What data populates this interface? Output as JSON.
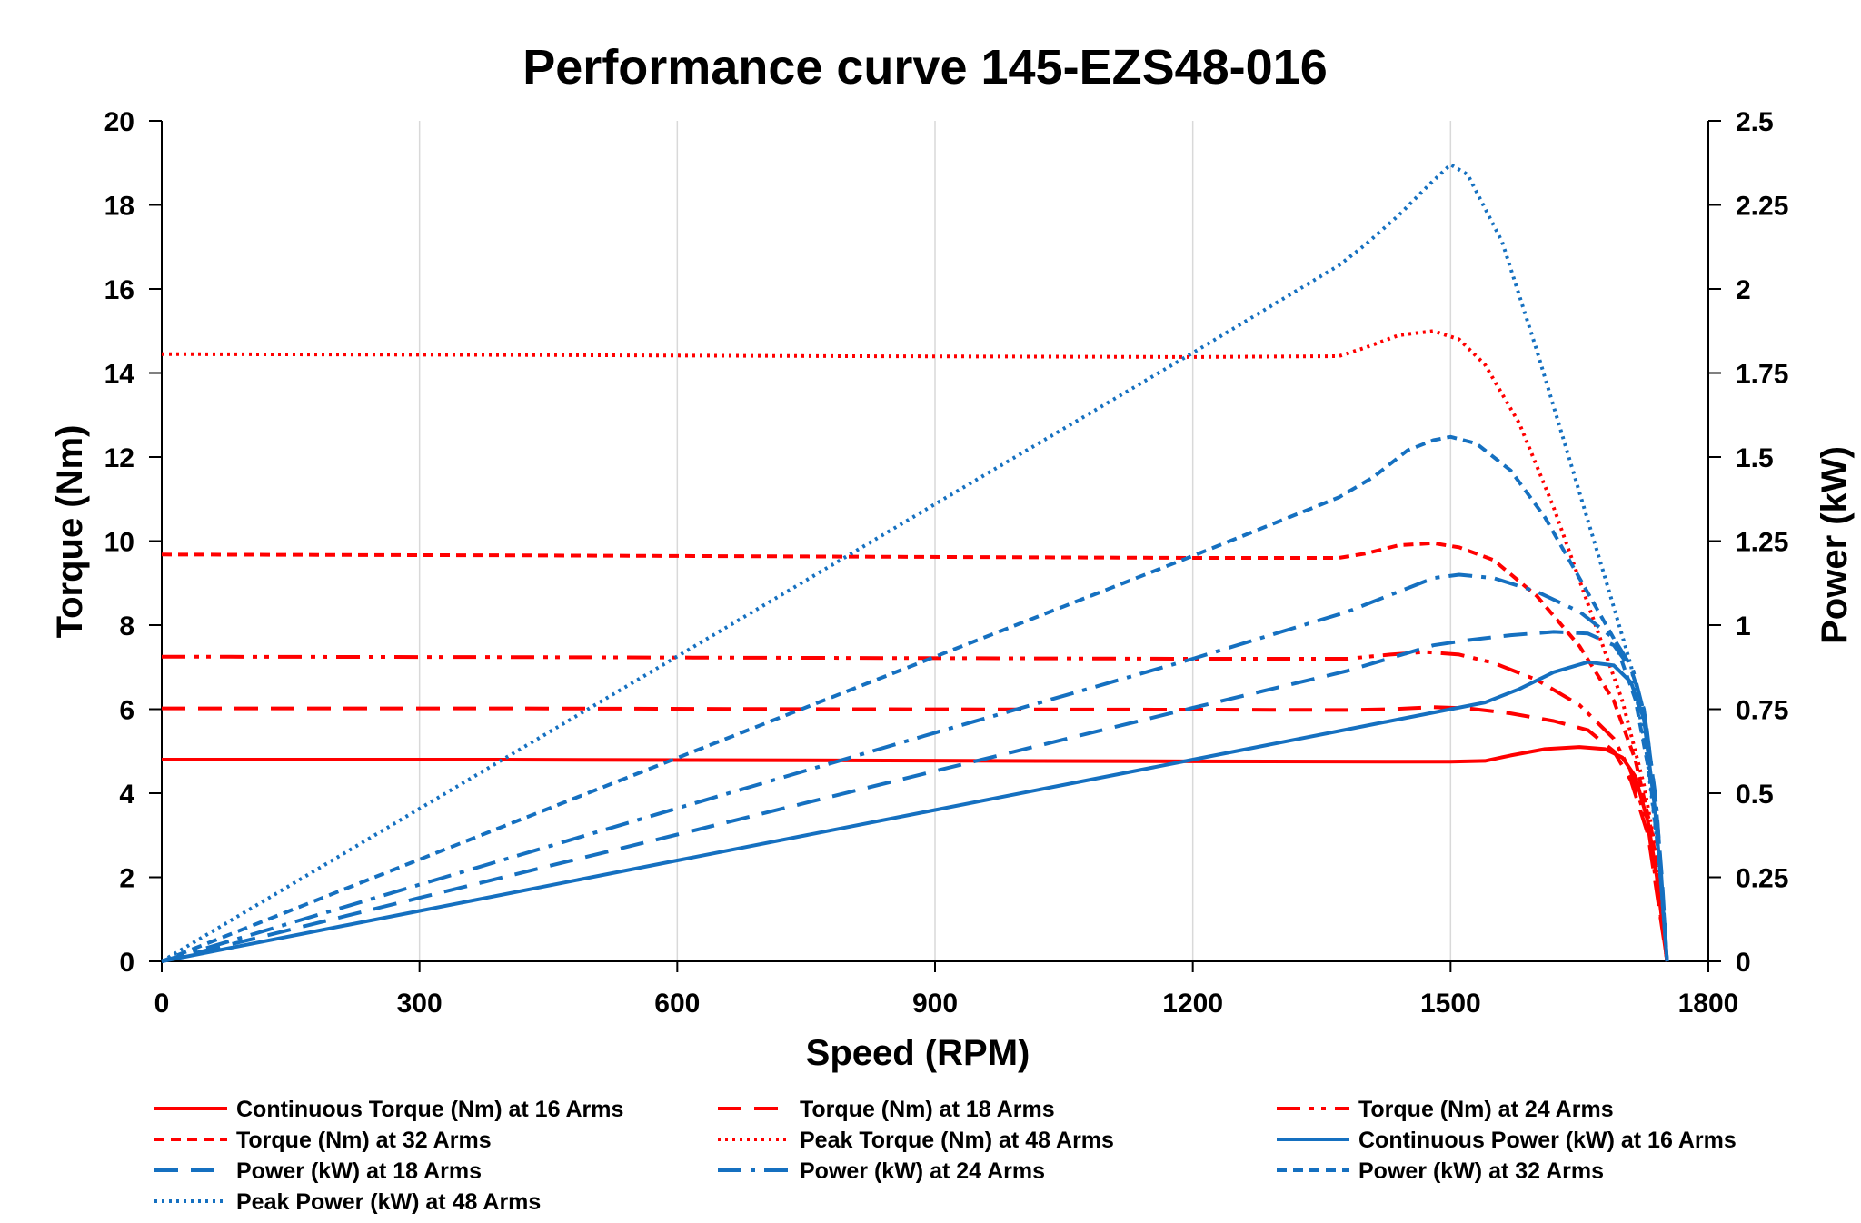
{
  "chart_data": {
    "type": "line",
    "title": "Performance curve 145-EZS48-016",
    "xlabel": "Speed (RPM)",
    "ylabel": "Torque (Nm)",
    "y2label": "Power (kW)",
    "xlim": [
      0,
      1800
    ],
    "ylim": [
      0,
      20
    ],
    "y2lim": [
      0,
      2.5
    ],
    "xticks": [
      "0",
      "300",
      "600",
      "900",
      "1200",
      "1500",
      "1800"
    ],
    "yticks": [
      "0",
      "2",
      "4",
      "6",
      "8",
      "10",
      "12",
      "14",
      "16",
      "18",
      "20"
    ],
    "y2ticks": [
      "0",
      "0.25",
      "0.5",
      "0.75",
      "1",
      "1.25",
      "1.5",
      "1.75",
      "2",
      "2.25",
      "2.5"
    ],
    "grid": "vertical",
    "legend_position": "bottom",
    "colors": {
      "torque": "#ff0000",
      "power": "#1570c0"
    },
    "series": [
      {
        "name": "Continuous Torque (Nm) at 16 Arms",
        "axis": "left",
        "color": "#ff0000",
        "dash": "solid",
        "points": [
          [
            0,
            4.8
          ],
          [
            400,
            4.8
          ],
          [
            800,
            4.78
          ],
          [
            1200,
            4.76
          ],
          [
            1500,
            4.75
          ],
          [
            1540,
            4.77
          ],
          [
            1570,
            4.9
          ],
          [
            1610,
            5.05
          ],
          [
            1650,
            5.1
          ],
          [
            1680,
            5.05
          ],
          [
            1700,
            4.85
          ],
          [
            1715,
            4.4
          ],
          [
            1730,
            3.3
          ],
          [
            1740,
            2.0
          ],
          [
            1752,
            0
          ]
        ]
      },
      {
        "name": "Torque (Nm) at 18 Arms",
        "axis": "left",
        "color": "#ff0000",
        "dash": "longdash",
        "points": [
          [
            0,
            6.02
          ],
          [
            400,
            6.02
          ],
          [
            800,
            6.0
          ],
          [
            1200,
            5.99
          ],
          [
            1380,
            5.98
          ],
          [
            1430,
            6.0
          ],
          [
            1480,
            6.05
          ],
          [
            1520,
            6.02
          ],
          [
            1570,
            5.9
          ],
          [
            1620,
            5.72
          ],
          [
            1660,
            5.5
          ],
          [
            1690,
            5.0
          ],
          [
            1710,
            4.3
          ],
          [
            1730,
            3.0
          ],
          [
            1752,
            0
          ]
        ]
      },
      {
        "name": "Torque (Nm) at 24 Arms",
        "axis": "left",
        "color": "#ff0000",
        "dash": "dashdotdot",
        "points": [
          [
            0,
            7.25
          ],
          [
            400,
            7.24
          ],
          [
            800,
            7.22
          ],
          [
            1200,
            7.2
          ],
          [
            1380,
            7.2
          ],
          [
            1430,
            7.3
          ],
          [
            1470,
            7.36
          ],
          [
            1510,
            7.3
          ],
          [
            1550,
            7.1
          ],
          [
            1600,
            6.7
          ],
          [
            1650,
            6.1
          ],
          [
            1690,
            5.3
          ],
          [
            1710,
            4.5
          ],
          [
            1730,
            3.2
          ],
          [
            1752,
            0
          ]
        ]
      },
      {
        "name": "Torque (Nm) at 32 Arms",
        "axis": "left",
        "color": "#ff0000",
        "dash": "shortdash",
        "points": [
          [
            0,
            9.68
          ],
          [
            400,
            9.66
          ],
          [
            800,
            9.63
          ],
          [
            1200,
            9.6
          ],
          [
            1370,
            9.6
          ],
          [
            1400,
            9.7
          ],
          [
            1440,
            9.9
          ],
          [
            1480,
            9.95
          ],
          [
            1510,
            9.85
          ],
          [
            1550,
            9.55
          ],
          [
            1600,
            8.7
          ],
          [
            1650,
            7.5
          ],
          [
            1690,
            6.2
          ],
          [
            1715,
            4.8
          ],
          [
            1735,
            3.0
          ],
          [
            1752,
            0
          ]
        ]
      },
      {
        "name": "Peak Torque (Nm) at 48 Arms",
        "axis": "left",
        "color": "#ff0000",
        "dash": "dotted",
        "points": [
          [
            0,
            14.45
          ],
          [
            400,
            14.43
          ],
          [
            800,
            14.4
          ],
          [
            1200,
            14.38
          ],
          [
            1370,
            14.4
          ],
          [
            1400,
            14.6
          ],
          [
            1440,
            14.9
          ],
          [
            1480,
            15.0
          ],
          [
            1510,
            14.8
          ],
          [
            1540,
            14.2
          ],
          [
            1580,
            12.8
          ],
          [
            1620,
            10.8
          ],
          [
            1660,
            8.5
          ],
          [
            1700,
            6.2
          ],
          [
            1725,
            4.2
          ],
          [
            1740,
            2.5
          ],
          [
            1752,
            0
          ]
        ]
      },
      {
        "name": "Continuous Power (kW) at 16 Arms",
        "axis": "right",
        "color": "#1570c0",
        "dash": "solid",
        "points": [
          [
            0,
            0
          ],
          [
            300,
            0.15
          ],
          [
            600,
            0.3
          ],
          [
            900,
            0.45
          ],
          [
            1200,
            0.6
          ],
          [
            1400,
            0.7
          ],
          [
            1540,
            0.77
          ],
          [
            1580,
            0.81
          ],
          [
            1620,
            0.86
          ],
          [
            1660,
            0.89
          ],
          [
            1690,
            0.88
          ],
          [
            1710,
            0.83
          ],
          [
            1725,
            0.72
          ],
          [
            1738,
            0.45
          ],
          [
            1746,
            0.2
          ],
          [
            1752,
            0
          ]
        ]
      },
      {
        "name": "Power (kW) at 18 Arms",
        "axis": "right",
        "color": "#1570c0",
        "dash": "longdash",
        "points": [
          [
            0,
            0
          ],
          [
            300,
            0.189
          ],
          [
            600,
            0.377
          ],
          [
            900,
            0.566
          ],
          [
            1200,
            0.754
          ],
          [
            1380,
            0.864
          ],
          [
            1480,
            0.94
          ],
          [
            1520,
            0.955
          ],
          [
            1570,
            0.97
          ],
          [
            1620,
            0.98
          ],
          [
            1660,
            0.975
          ],
          [
            1690,
            0.94
          ],
          [
            1710,
            0.87
          ],
          [
            1725,
            0.75
          ],
          [
            1738,
            0.5
          ],
          [
            1746,
            0.25
          ],
          [
            1752,
            0
          ]
        ]
      },
      {
        "name": "Power (kW) at 24 Arms",
        "axis": "right",
        "color": "#1570c0",
        "dash": "dashdot",
        "points": [
          [
            0,
            0
          ],
          [
            300,
            0.228
          ],
          [
            600,
            0.455
          ],
          [
            900,
            0.68
          ],
          [
            1200,
            0.9
          ],
          [
            1380,
            1.04
          ],
          [
            1440,
            1.1
          ],
          [
            1480,
            1.14
          ],
          [
            1510,
            1.15
          ],
          [
            1550,
            1.14
          ],
          [
            1600,
            1.1
          ],
          [
            1650,
            1.04
          ],
          [
            1690,
            0.96
          ],
          [
            1712,
            0.87
          ],
          [
            1727,
            0.72
          ],
          [
            1740,
            0.45
          ],
          [
            1752,
            0
          ]
        ]
      },
      {
        "name": "Power (kW) at 32 Arms",
        "axis": "right",
        "color": "#1570c0",
        "dash": "shortdash",
        "points": [
          [
            0,
            0
          ],
          [
            300,
            0.303
          ],
          [
            600,
            0.605
          ],
          [
            900,
            0.906
          ],
          [
            1200,
            1.206
          ],
          [
            1370,
            1.38
          ],
          [
            1410,
            1.44
          ],
          [
            1450,
            1.52
          ],
          [
            1480,
            1.55
          ],
          [
            1500,
            1.56
          ],
          [
            1530,
            1.54
          ],
          [
            1570,
            1.46
          ],
          [
            1610,
            1.32
          ],
          [
            1650,
            1.14
          ],
          [
            1690,
            0.96
          ],
          [
            1715,
            0.78
          ],
          [
            1732,
            0.55
          ],
          [
            1745,
            0.25
          ],
          [
            1752,
            0
          ]
        ]
      },
      {
        "name": "Peak Power (kW) at 48 Arms",
        "axis": "right",
        "color": "#1570c0",
        "dash": "dotted",
        "points": [
          [
            0,
            0
          ],
          [
            300,
            0.454
          ],
          [
            600,
            0.907
          ],
          [
            900,
            1.36
          ],
          [
            1200,
            1.81
          ],
          [
            1370,
            2.07
          ],
          [
            1400,
            2.13
          ],
          [
            1440,
            2.22
          ],
          [
            1475,
            2.31
          ],
          [
            1500,
            2.37
          ],
          [
            1520,
            2.34
          ],
          [
            1560,
            2.14
          ],
          [
            1600,
            1.82
          ],
          [
            1640,
            1.48
          ],
          [
            1680,
            1.14
          ],
          [
            1710,
            0.88
          ],
          [
            1728,
            0.62
          ],
          [
            1742,
            0.32
          ],
          [
            1752,
            0
          ]
        ]
      }
    ]
  }
}
